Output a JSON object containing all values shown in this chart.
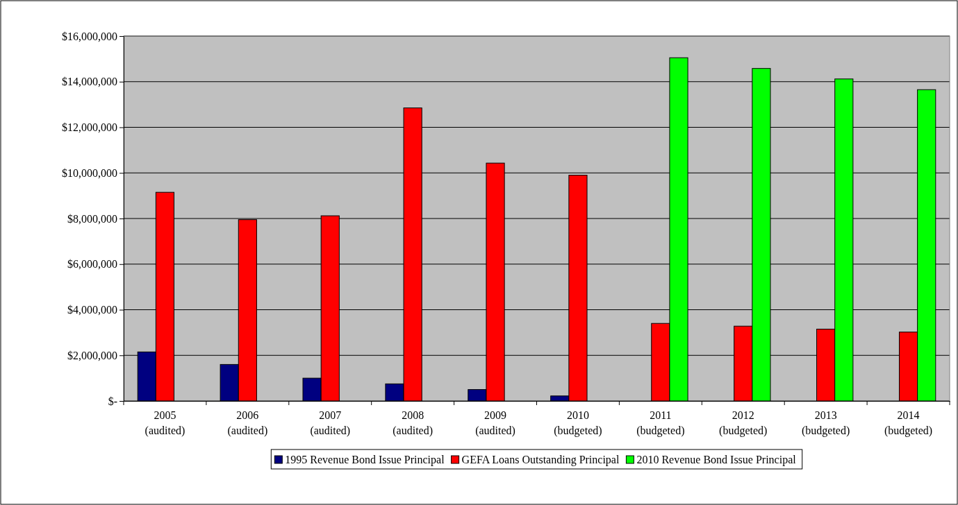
{
  "chart_data": {
    "type": "bar",
    "categories": [
      "2005\n(audited)",
      "2006\n(audited)",
      "2007\n(audited)",
      "2008\n(audited)",
      "2009\n(audited)",
      "2010\n(budgeted)",
      "2011\n(budgeted)",
      "2012\n(budgeted)",
      "2013\n(budgeted)",
      "2014\n(budgeted)"
    ],
    "series": [
      {
        "name": "1995 Revenue Bond Issue Principal",
        "color": "#000080",
        "values": [
          2150000,
          1600000,
          1000000,
          750000,
          500000,
          220000,
          null,
          null,
          null,
          null
        ]
      },
      {
        "name": "GEFA Loans Outstanding Principal",
        "color": "#ff0000",
        "values": [
          9150000,
          7950000,
          8120000,
          12850000,
          10430000,
          9900000,
          3400000,
          3280000,
          3150000,
          3020000
        ]
      },
      {
        "name": "2010 Revenue Bond Issue Principal",
        "color": "#00ff00",
        "values": [
          null,
          null,
          null,
          null,
          null,
          null,
          15050000,
          14580000,
          14120000,
          13650000
        ]
      }
    ],
    "ylim": [
      0,
      16000000
    ],
    "yticks": [
      {
        "value": 0,
        "label": "$-"
      },
      {
        "value": 2000000,
        "label": "$2,000,000"
      },
      {
        "value": 4000000,
        "label": "$4,000,000"
      },
      {
        "value": 6000000,
        "label": "$6,000,000"
      },
      {
        "value": 8000000,
        "label": "$8,000,000"
      },
      {
        "value": 10000000,
        "label": "$10,000,000"
      },
      {
        "value": 12000000,
        "label": "$12,000,000"
      },
      {
        "value": 14000000,
        "label": "$14,000,000"
      },
      {
        "value": 16000000,
        "label": "$16,000,000"
      }
    ],
    "grid": "y",
    "legend": "bottom"
  }
}
